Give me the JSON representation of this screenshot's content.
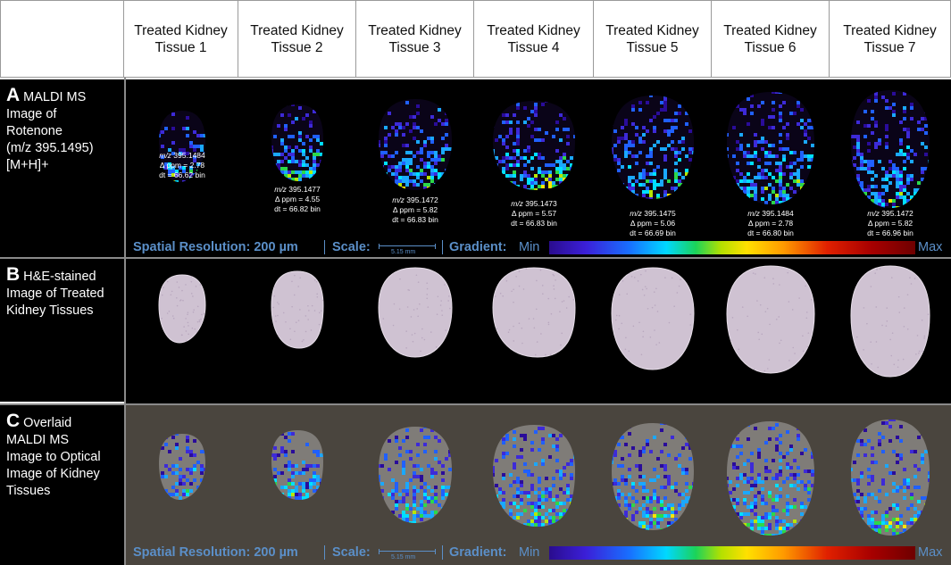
{
  "columns": [
    {
      "line1": "Treated Kidney",
      "line2": "Tissue 1"
    },
    {
      "line1": "Treated Kidney",
      "line2": "Tissue 2"
    },
    {
      "line1": "Treated Kidney",
      "line2": "Tissue 3"
    },
    {
      "line1": "Treated Kidney",
      "line2": "Tissue 4"
    },
    {
      "line1": "Treated Kidney",
      "line2": "Tissue 5"
    },
    {
      "line1": "Treated Kidney",
      "line2": "Tissue 6"
    },
    {
      "line1": "Treated Kidney",
      "line2": "Tissue 7"
    }
  ],
  "rows": {
    "a": {
      "letter": "A",
      "lines": [
        "MALDI MS",
        "Image of",
        "Rotenone",
        "(m/z 395.1495)",
        "[M+H]+"
      ]
    },
    "b": {
      "letter": "B",
      "lines": [
        "H&E-stained",
        "Image of Treated",
        "Kidney Tissues"
      ]
    },
    "c": {
      "letter": "C",
      "lines": [
        "Overlaid",
        "MALDI MS",
        "Image to Optical",
        "Image of Kidney",
        "Tissues"
      ]
    }
  },
  "annotations": [
    {
      "mz_label": "m/z",
      "mz": "395.1484",
      "ppm": "Δ ppm = 2.78",
      "dt": "dt = 66.62 bin"
    },
    {
      "mz_label": "m/z",
      "mz": "395.1477",
      "ppm": "Δ ppm = 4.55",
      "dt": "dt = 66.82 bin"
    },
    {
      "mz_label": "m/z",
      "mz": "395.1472",
      "ppm": "Δ ppm = 5.82",
      "dt": "dt = 66.83 bin"
    },
    {
      "mz_label": "m/z",
      "mz": "395.1473",
      "ppm": "Δ ppm = 5.57",
      "dt": "dt = 66.83 bin"
    },
    {
      "mz_label": "m/z",
      "mz": "395.1475",
      "ppm": "Δ ppm = 5.06",
      "dt": "dt = 66.69 bin"
    },
    {
      "mz_label": "m/z",
      "mz": "395.1484",
      "ppm": "Δ ppm = 2.78",
      "dt": "dt = 66.80 bin"
    },
    {
      "mz_label": "m/z",
      "mz": "395.1472",
      "ppm": "Δ ppm = 5.82",
      "dt": "dt = 66.96 bin"
    }
  ],
  "footer": {
    "spatial": "Spatial Resolution: 200 µm",
    "scale_label": "Scale:",
    "scale_value": "5.15 mm",
    "gradient_label": "Gradient:",
    "min": "Min",
    "max": "Max"
  },
  "colors": {
    "footer_text": "#5b8fc8",
    "tissue_stain": "#cfc2d2",
    "overlay_background": "#4a453e"
  }
}
